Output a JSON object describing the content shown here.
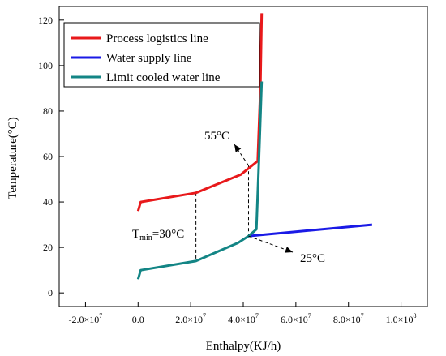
{
  "chart_data": {
    "type": "line",
    "xlabel": "Enthalpy(KJ/h)",
    "ylabel": "Temperature(°C)",
    "xlim": [
      -30000000,
      110000000
    ],
    "ylim": [
      -6,
      126
    ],
    "x_ticks": [
      -20000000,
      0,
      20000000,
      40000000,
      60000000,
      80000000,
      100000000
    ],
    "x_tick_labels": [
      {
        "mantissa": "-2.0×10",
        "exp": "7"
      },
      {
        "mantissa": "0.0",
        "exp": ""
      },
      {
        "mantissa": "2.0×10",
        "exp": "7"
      },
      {
        "mantissa": "4.0×10",
        "exp": "7"
      },
      {
        "mantissa": "6.0×10",
        "exp": "7"
      },
      {
        "mantissa": "8.0×10",
        "exp": "7"
      },
      {
        "mantissa": "1.0×10",
        "exp": "8"
      }
    ],
    "y_ticks": [
      0,
      20,
      40,
      60,
      80,
      100,
      120
    ],
    "y_tick_labels": [
      "0",
      "20",
      "40",
      "60",
      "80",
      "100",
      "120"
    ],
    "legend_position": "top-left",
    "series": [
      {
        "name": "Process logistics line",
        "color": "#e8191b",
        "x": [
          0,
          1000000,
          22000000,
          39000000,
          45500000,
          46500000,
          47000000
        ],
        "y": [
          36,
          40,
          44,
          52,
          58,
          90,
          123
        ]
      },
      {
        "name": "Water supply line",
        "color": "#1a1ae6",
        "x": [
          42000000,
          89000000
        ],
        "y": [
          25,
          30
        ]
      },
      {
        "name": "Limit cooled water line",
        "color": "#138585",
        "x": [
          0,
          1000000,
          22000000,
          38000000,
          42000000,
          45000000,
          46000000,
          47000000
        ],
        "y": [
          6,
          10,
          14,
          22,
          25,
          28,
          60,
          93
        ]
      }
    ],
    "annotations": {
      "label_55": "55°C",
      "label_25": "25°C",
      "tmin_prefix": "T",
      "tmin_sub": "min",
      "tmin_value": "=30°C"
    }
  }
}
